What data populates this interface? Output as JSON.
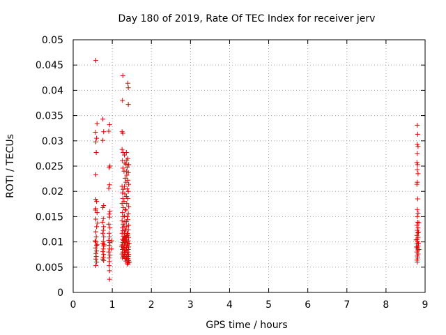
{
  "chart_data": {
    "type": "scatter",
    "title": "Day 180 of 2019, Rate Of TEC Index for receiver jerv",
    "xlabel": "GPS time / hours",
    "ylabel": "ROTI / TECUs",
    "xlim": [
      0,
      9
    ],
    "ylim": [
      0,
      0.05
    ],
    "x_ticks": [
      "0",
      "1",
      "2",
      "3",
      "4",
      "5",
      "6",
      "7",
      "8",
      "9"
    ],
    "y_ticks": [
      "0",
      "0.005",
      "0.01",
      "0.015",
      "0.02",
      "0.025",
      "0.03",
      "0.035",
      "0.04",
      "0.045",
      "0.05"
    ],
    "grid": true,
    "marker": "+",
    "color": "#e00000",
    "points": [
      [
        0.58,
        0.0459
      ],
      [
        0.61,
        0.0334
      ],
      [
        0.57,
        0.0317
      ],
      [
        0.6,
        0.0305
      ],
      [
        0.58,
        0.0298
      ],
      [
        0.59,
        0.0277
      ],
      [
        0.58,
        0.0233
      ],
      [
        0.58,
        0.0184
      ],
      [
        0.6,
        0.018
      ],
      [
        0.58,
        0.0166
      ],
      [
        0.61,
        0.0158
      ],
      [
        0.58,
        0.0145
      ],
      [
        0.6,
        0.013
      ],
      [
        0.58,
        0.012
      ],
      [
        0.59,
        0.011
      ],
      [
        0.58,
        0.01
      ],
      [
        0.6,
        0.0093
      ],
      [
        0.57,
        0.0088
      ],
      [
        0.6,
        0.0082
      ],
      [
        0.58,
        0.0077
      ],
      [
        0.59,
        0.0071
      ],
      [
        0.58,
        0.0066
      ],
      [
        0.6,
        0.006
      ],
      [
        0.58,
        0.0053
      ],
      [
        0.61,
        0.0095
      ],
      [
        0.56,
        0.0102
      ],
      [
        0.62,
        0.0137
      ],
      [
        0.57,
        0.0163
      ],
      [
        0.76,
        0.0343
      ],
      [
        0.78,
        0.0318
      ],
      [
        0.76,
        0.0301
      ],
      [
        0.78,
        0.0172
      ],
      [
        0.76,
        0.0168
      ],
      [
        0.77,
        0.0146
      ],
      [
        0.75,
        0.0139
      ],
      [
        0.78,
        0.013
      ],
      [
        0.77,
        0.0123
      ],
      [
        0.76,
        0.0117
      ],
      [
        0.78,
        0.011
      ],
      [
        0.77,
        0.0101
      ],
      [
        0.76,
        0.0097
      ],
      [
        0.78,
        0.0092
      ],
      [
        0.77,
        0.0086
      ],
      [
        0.76,
        0.0081
      ],
      [
        0.78,
        0.0075
      ],
      [
        0.77,
        0.007
      ],
      [
        0.76,
        0.0066
      ],
      [
        0.78,
        0.0063
      ],
      [
        0.79,
        0.0095
      ],
      [
        0.93,
        0.0332
      ],
      [
        0.91,
        0.0319
      ],
      [
        0.94,
        0.025
      ],
      [
        0.92,
        0.0247
      ],
      [
        0.93,
        0.0213
      ],
      [
        0.91,
        0.0206
      ],
      [
        0.94,
        0.016
      ],
      [
        0.92,
        0.0155
      ],
      [
        0.93,
        0.0149
      ],
      [
        0.91,
        0.0135
      ],
      [
        0.94,
        0.0128
      ],
      [
        0.92,
        0.0117
      ],
      [
        0.93,
        0.011
      ],
      [
        0.91,
        0.0103
      ],
      [
        0.94,
        0.0099
      ],
      [
        0.92,
        0.0093
      ],
      [
        0.93,
        0.0086
      ],
      [
        0.91,
        0.008
      ],
      [
        0.94,
        0.0074
      ],
      [
        0.92,
        0.0068
      ],
      [
        0.93,
        0.0061
      ],
      [
        0.92,
        0.0053
      ],
      [
        0.93,
        0.0043
      ],
      [
        0.93,
        0.0026
      ],
      [
        0.99,
        0.0102
      ],
      [
        0.98,
        0.0086
      ],
      [
        1.27,
        0.0429
      ],
      [
        1.26,
        0.038
      ],
      [
        1.25,
        0.0318
      ],
      [
        1.27,
        0.0315
      ],
      [
        1.25,
        0.0283
      ],
      [
        1.28,
        0.0277
      ],
      [
        1.26,
        0.0261
      ],
      [
        1.27,
        0.0246
      ],
      [
        1.25,
        0.021
      ],
      [
        1.28,
        0.0204
      ],
      [
        1.26,
        0.0197
      ],
      [
        1.27,
        0.0186
      ],
      [
        1.25,
        0.0176
      ],
      [
        1.28,
        0.0168
      ],
      [
        1.26,
        0.0158
      ],
      [
        1.27,
        0.015
      ],
      [
        1.25,
        0.0142
      ],
      [
        1.28,
        0.0135
      ],
      [
        1.26,
        0.0128
      ],
      [
        1.27,
        0.0122
      ],
      [
        1.25,
        0.0117
      ],
      [
        1.28,
        0.0111
      ],
      [
        1.26,
        0.0105
      ],
      [
        1.27,
        0.0099
      ],
      [
        1.25,
        0.0094
      ],
      [
        1.28,
        0.0089
      ],
      [
        1.26,
        0.0085
      ],
      [
        1.27,
        0.008
      ],
      [
        1.25,
        0.0076
      ],
      [
        1.28,
        0.0072
      ],
      [
        1.26,
        0.0068
      ],
      [
        1.31,
        0.0272
      ],
      [
        1.32,
        0.0256
      ],
      [
        1.3,
        0.024
      ],
      [
        1.33,
        0.0226
      ],
      [
        1.31,
        0.021
      ],
      [
        1.32,
        0.0195
      ],
      [
        1.3,
        0.018
      ],
      [
        1.33,
        0.0164
      ],
      [
        1.31,
        0.0151
      ],
      [
        1.32,
        0.014
      ],
      [
        1.3,
        0.0131
      ],
      [
        1.33,
        0.0124
      ],
      [
        1.31,
        0.0117
      ],
      [
        1.32,
        0.0111
      ],
      [
        1.3,
        0.0106
      ],
      [
        1.33,
        0.0101
      ],
      [
        1.31,
        0.0096
      ],
      [
        1.32,
        0.0092
      ],
      [
        1.3,
        0.0087
      ],
      [
        1.33,
        0.0083
      ],
      [
        1.31,
        0.0079
      ],
      [
        1.32,
        0.0075
      ],
      [
        1.3,
        0.0071
      ],
      [
        1.33,
        0.0067
      ],
      [
        1.36,
        0.0277
      ],
      [
        1.37,
        0.0262
      ],
      [
        1.35,
        0.0254
      ],
      [
        1.38,
        0.0248
      ],
      [
        1.36,
        0.024
      ],
      [
        1.37,
        0.0232
      ],
      [
        1.35,
        0.0218
      ],
      [
        1.38,
        0.0205
      ],
      [
        1.36,
        0.019
      ],
      [
        1.37,
        0.0176
      ],
      [
        1.35,
        0.0163
      ],
      [
        1.38,
        0.015
      ],
      [
        1.36,
        0.014
      ],
      [
        1.37,
        0.0131
      ],
      [
        1.35,
        0.0124
      ],
      [
        1.38,
        0.0117
      ],
      [
        1.36,
        0.011
      ],
      [
        1.37,
        0.0104
      ],
      [
        1.35,
        0.0099
      ],
      [
        1.38,
        0.0094
      ],
      [
        1.36,
        0.0089
      ],
      [
        1.37,
        0.0084
      ],
      [
        1.35,
        0.0079
      ],
      [
        1.38,
        0.0075
      ],
      [
        1.36,
        0.007
      ],
      [
        1.37,
        0.0066
      ],
      [
        1.35,
        0.0062
      ],
      [
        1.38,
        0.0058
      ],
      [
        1.4,
        0.0414
      ],
      [
        1.41,
        0.0405
      ],
      [
        1.41,
        0.0372
      ],
      [
        1.4,
        0.0265
      ],
      [
        1.42,
        0.0253
      ],
      [
        1.41,
        0.0237
      ],
      [
        1.4,
        0.0222
      ],
      [
        1.42,
        0.0214
      ],
      [
        1.41,
        0.02
      ],
      [
        1.4,
        0.0186
      ],
      [
        1.42,
        0.017
      ],
      [
        1.41,
        0.0156
      ],
      [
        1.4,
        0.0144
      ],
      [
        1.42,
        0.0133
      ],
      [
        1.41,
        0.0124
      ],
      [
        1.4,
        0.0116
      ],
      [
        1.42,
        0.0109
      ],
      [
        1.41,
        0.0102
      ],
      [
        1.4,
        0.0096
      ],
      [
        1.42,
        0.009
      ],
      [
        1.41,
        0.0085
      ],
      [
        1.4,
        0.008
      ],
      [
        1.42,
        0.0075
      ],
      [
        1.41,
        0.0071
      ],
      [
        1.4,
        0.0067
      ],
      [
        1.42,
        0.0063
      ],
      [
        1.41,
        0.0059
      ],
      [
        1.4,
        0.0056
      ],
      [
        1.39,
        0.0113
      ],
      [
        1.43,
        0.0097
      ],
      [
        1.34,
        0.0108
      ],
      [
        1.29,
        0.0103
      ],
      [
        1.24,
        0.0091
      ],
      [
        1.44,
        0.006
      ],
      [
        8.8,
        0.0331
      ],
      [
        8.81,
        0.0313
      ],
      [
        8.8,
        0.0293
      ],
      [
        8.82,
        0.0289
      ],
      [
        8.8,
        0.0275
      ],
      [
        8.79,
        0.0257
      ],
      [
        8.81,
        0.0253
      ],
      [
        8.8,
        0.0243
      ],
      [
        8.82,
        0.0235
      ],
      [
        8.8,
        0.0218
      ],
      [
        8.79,
        0.0214
      ],
      [
        8.81,
        0.0185
      ],
      [
        8.8,
        0.0164
      ],
      [
        8.82,
        0.0157
      ],
      [
        8.8,
        0.015
      ],
      [
        8.81,
        0.0139
      ],
      [
        8.79,
        0.0133
      ],
      [
        8.82,
        0.0128
      ],
      [
        8.8,
        0.0123
      ],
      [
        8.81,
        0.0118
      ],
      [
        8.79,
        0.0113
      ],
      [
        8.82,
        0.0109
      ],
      [
        8.8,
        0.0105
      ],
      [
        8.81,
        0.01
      ],
      [
        8.79,
        0.0096
      ],
      [
        8.82,
        0.0092
      ],
      [
        8.8,
        0.0088
      ],
      [
        8.81,
        0.0084
      ],
      [
        8.79,
        0.008
      ],
      [
        8.82,
        0.0076
      ],
      [
        8.8,
        0.0072
      ],
      [
        8.81,
        0.0068
      ],
      [
        8.79,
        0.0064
      ],
      [
        8.8,
        0.006
      ],
      [
        8.83,
        0.0119
      ],
      [
        8.84,
        0.0138
      ],
      [
        8.83,
        0.0097
      ],
      [
        8.84,
        0.0085
      ],
      [
        8.78,
        0.009
      ],
      [
        8.77,
        0.0104
      ]
    ]
  }
}
